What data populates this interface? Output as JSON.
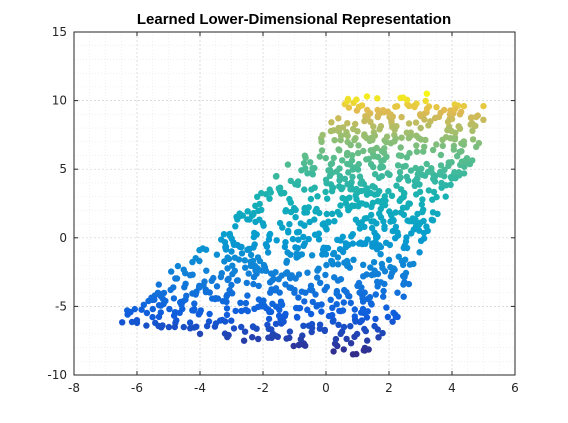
{
  "chart_data": {
    "type": "scatter",
    "title": "Learned Lower-Dimensional Representation",
    "xlabel": "",
    "ylabel": "",
    "xlim": [
      -8,
      6
    ],
    "ylim": [
      -10,
      15
    ],
    "xticks": [
      -8,
      -6,
      -4,
      -2,
      0,
      2,
      4,
      6
    ],
    "yticks": [
      -10,
      -5,
      0,
      5,
      10,
      15
    ],
    "grid": true,
    "minor_grid": true,
    "box": true,
    "colormap": "parula",
    "color_by": "y",
    "colors": {
      "low": "#352a87",
      "high": "#f9fb0e",
      "axes": "#262626",
      "grid_major": "#d0d0d0",
      "grid_minor": "#e6e6e6"
    },
    "region_vertices": [
      {
        "x": -6.5,
        "y": -5.6
      },
      {
        "x": -2.5,
        "y": 2.5
      },
      {
        "x": 0.0,
        "y": 8.0
      },
      {
        "x": 0.8,
        "y": 10.6
      },
      {
        "x": 5.1,
        "y": 9.7
      },
      {
        "x": 4.9,
        "y": 6.5
      },
      {
        "x": 3.3,
        "y": 0.8
      },
      {
        "x": 2.3,
        "y": -5.8
      },
      {
        "x": 1.2,
        "y": -8.6
      },
      {
        "x": -6.5,
        "y": -6.2
      }
    ],
    "points": [
      {
        "x": -6.3,
        "y": -5.6
      },
      {
        "x": -6.0,
        "y": -6.2
      },
      {
        "x": -5.7,
        "y": -6.4
      },
      {
        "x": -5.5,
        "y": -5.2
      },
      {
        "x": -5.1,
        "y": -4.6
      },
      {
        "x": -4.8,
        "y": -6.5
      },
      {
        "x": -4.5,
        "y": -3.6
      },
      {
        "x": -4.2,
        "y": -5.3
      },
      {
        "x": -4.0,
        "y": -7.0
      },
      {
        "x": -3.8,
        "y": -2.4
      },
      {
        "x": -3.5,
        "y": -4.4
      },
      {
        "x": -3.2,
        "y": -6.1
      },
      {
        "x": -3.0,
        "y": -1.0
      },
      {
        "x": -2.8,
        "y": -3.1
      },
      {
        "x": -2.6,
        "y": -7.5
      },
      {
        "x": -2.3,
        "y": 1.8
      },
      {
        "x": -2.1,
        "y": -1.7
      },
      {
        "x": -1.8,
        "y": -5.4
      },
      {
        "x": -1.5,
        "y": 3.6
      },
      {
        "x": -1.2,
        "y": 0.4
      },
      {
        "x": -1.0,
        "y": -3.8
      },
      {
        "x": -0.8,
        "y": -7.4
      },
      {
        "x": -0.5,
        "y": 5.5
      },
      {
        "x": -0.3,
        "y": 2.1
      },
      {
        "x": 0.0,
        "y": -1.2
      },
      {
        "x": 0.2,
        "y": -5.1
      },
      {
        "x": 0.4,
        "y": 8.0
      },
      {
        "x": 0.6,
        "y": 4.3
      },
      {
        "x": 0.8,
        "y": 0.1
      },
      {
        "x": 1.0,
        "y": -3.5
      },
      {
        "x": 1.2,
        "y": -8.2
      },
      {
        "x": 1.3,
        "y": 10.3
      },
      {
        "x": 1.5,
        "y": 6.4
      },
      {
        "x": 1.8,
        "y": 2.7
      },
      {
        "x": 2.0,
        "y": -1.6
      },
      {
        "x": 2.2,
        "y": -5.6
      },
      {
        "x": 2.4,
        "y": 8.8
      },
      {
        "x": 2.7,
        "y": 4.9
      },
      {
        "x": 3.0,
        "y": 1.1
      },
      {
        "x": 3.2,
        "y": 10.5
      },
      {
        "x": 3.5,
        "y": 6.8
      },
      {
        "x": 3.8,
        "y": 3.0
      },
      {
        "x": 4.1,
        "y": 9.4
      },
      {
        "x": 4.4,
        "y": 5.6
      },
      {
        "x": 4.7,
        "y": 8.2
      },
      {
        "x": 5.0,
        "y": 9.6
      }
    ]
  }
}
